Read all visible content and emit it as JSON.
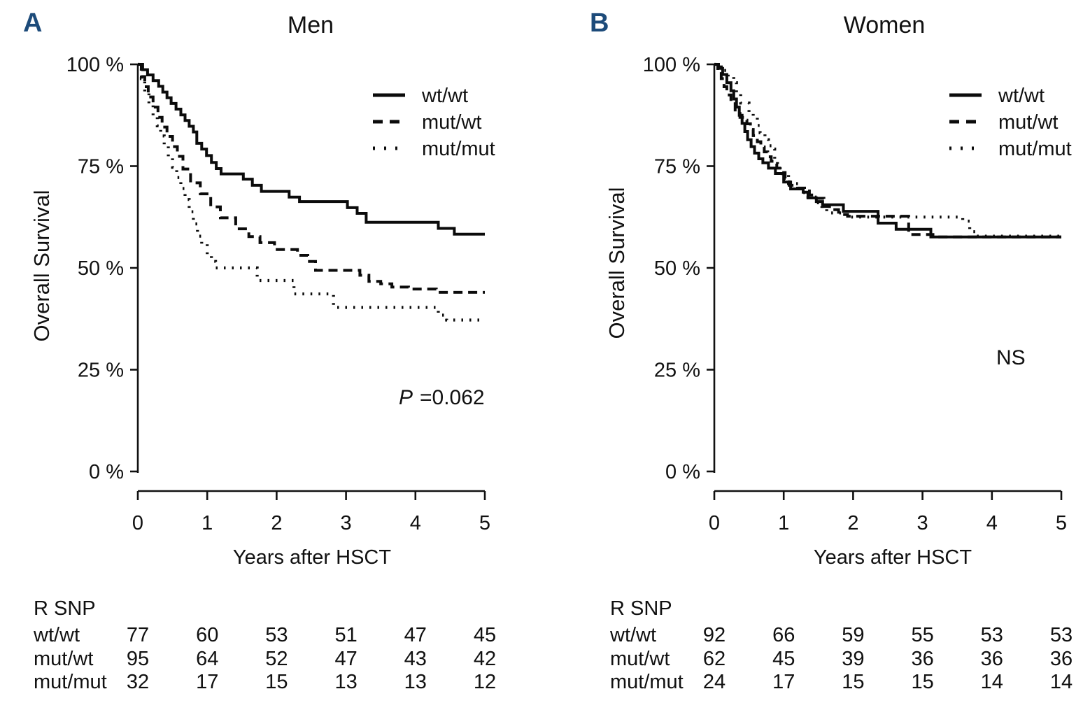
{
  "background": "#ffffff",
  "text_color": "#111111",
  "panel_label_color": "#1d4b7a",
  "chart_data": [
    {
      "type": "line",
      "subtype": "kaplan-meier-step",
      "panel_label": "A",
      "title": "Men",
      "xlabel": "Years after HSCT",
      "ylabel": "Overall Survival",
      "annotation": {
        "italic": "P",
        "text": "=0.062"
      },
      "xlim": [
        0,
        5
      ],
      "ylim": [
        0,
        100
      ],
      "grid": false,
      "legend_position": "upper right",
      "x_ticks": [
        "0",
        "1",
        "2",
        "3",
        "4",
        "5"
      ],
      "y_ticks": [
        {
          "label": "100 %",
          "value": 100
        },
        {
          "label": "75 %",
          "value": 75
        },
        {
          "label": "50 %",
          "value": 50
        },
        {
          "label": "25 %",
          "value": 25
        },
        {
          "label": "0 %",
          "value": 0
        }
      ],
      "legend": [
        {
          "label": "wt/wt",
          "style": "solid"
        },
        {
          "label": "mut/wt",
          "style": "dashed"
        },
        {
          "label": "mut/mut",
          "style": "dotted"
        }
      ],
      "series": [
        {
          "name": "wt/wt",
          "style": "solid",
          "points": [
            [
              0,
              100
            ],
            [
              0.07,
              98.7
            ],
            [
              0.14,
              97.4
            ],
            [
              0.22,
              96
            ],
            [
              0.3,
              94.6
            ],
            [
              0.36,
              93.2
            ],
            [
              0.42,
              91.8
            ],
            [
              0.48,
              90.4
            ],
            [
              0.55,
              89
            ],
            [
              0.62,
              87.6
            ],
            [
              0.68,
              86.2
            ],
            [
              0.74,
              84.8
            ],
            [
              0.8,
              83.4
            ],
            [
              0.85,
              80.6
            ],
            [
              0.92,
              79.2
            ],
            [
              0.99,
              77.6
            ],
            [
              1.06,
              75.9
            ],
            [
              1.13,
              74.4
            ],
            [
              1.2,
              73.1
            ],
            [
              1.52,
              71.8
            ],
            [
              1.65,
              70.3
            ],
            [
              1.78,
              68.8
            ],
            [
              2.18,
              67.4
            ],
            [
              2.33,
              66.3
            ],
            [
              3.02,
              64.8
            ],
            [
              3.16,
              63.4
            ],
            [
              3.29,
              61.2
            ],
            [
              4.33,
              59.7
            ],
            [
              4.56,
              58.3
            ],
            [
              5,
              58.3
            ]
          ]
        },
        {
          "name": "mut/wt",
          "style": "dashed",
          "points": [
            [
              0,
              100
            ],
            [
              0.05,
              97
            ],
            [
              0.1,
              94.5
            ],
            [
              0.15,
              92
            ],
            [
              0.22,
              89.5
            ],
            [
              0.29,
              87
            ],
            [
              0.35,
              84.6
            ],
            [
              0.42,
              82.3
            ],
            [
              0.5,
              79.8
            ],
            [
              0.57,
              77.4
            ],
            [
              0.65,
              74.3
            ],
            [
              0.76,
              70.9
            ],
            [
              0.9,
              68.2
            ],
            [
              1.05,
              65
            ],
            [
              1.19,
              62.3
            ],
            [
              1.41,
              59.6
            ],
            [
              1.6,
              57.7
            ],
            [
              1.76,
              56.2
            ],
            [
              1.97,
              54.5
            ],
            [
              2.3,
              53.1
            ],
            [
              2.45,
              51.6
            ],
            [
              2.56,
              49.4
            ],
            [
              3.2,
              48.2
            ],
            [
              3.33,
              46.7
            ],
            [
              3.5,
              46.1
            ],
            [
              3.66,
              45.3
            ],
            [
              3.9,
              44.8
            ],
            [
              4.3,
              44
            ],
            [
              5,
              44
            ]
          ]
        },
        {
          "name": "mut/mut",
          "style": "dotted",
          "points": [
            [
              0,
              100
            ],
            [
              0.05,
              96.5
            ],
            [
              0.1,
              93.3
            ],
            [
              0.16,
              90.2
            ],
            [
              0.22,
              87.4
            ],
            [
              0.28,
              84.9
            ],
            [
              0.33,
              82.4
            ],
            [
              0.38,
              79.9
            ],
            [
              0.44,
              77.2
            ],
            [
              0.5,
              74.7
            ],
            [
              0.56,
              72.2
            ],
            [
              0.62,
              69.5
            ],
            [
              0.68,
              66.8
            ],
            [
              0.74,
              63.8
            ],
            [
              0.8,
              60.8
            ],
            [
              0.86,
              57.8
            ],
            [
              0.92,
              55.9
            ],
            [
              1,
              53.2
            ],
            [
              1.06,
              51.6
            ],
            [
              1.12,
              50
            ],
            [
              1.72,
              46.9
            ],
            [
              2.25,
              43.6
            ],
            [
              2.82,
              40.3
            ],
            [
              4.33,
              38.4
            ],
            [
              4.45,
              37.2
            ],
            [
              4.95,
              37.2
            ]
          ]
        }
      ],
      "risk_table": {
        "header": "R SNP",
        "rows": [
          {
            "label": "wt/wt",
            "values": [
              "77",
              "60",
              "53",
              "51",
              "47",
              "45"
            ]
          },
          {
            "label": "mut/wt",
            "values": [
              "95",
              "64",
              "52",
              "47",
              "43",
              "42"
            ]
          },
          {
            "label": "mut/mut",
            "values": [
              "32",
              "17",
              "15",
              "13",
              "13",
              "12"
            ]
          }
        ]
      }
    },
    {
      "type": "line",
      "subtype": "kaplan-meier-step",
      "panel_label": "B",
      "title": "Women",
      "xlabel": "Years after HSCT",
      "ylabel": "Overall Survival",
      "annotation": {
        "italic": "",
        "text": "NS"
      },
      "xlim": [
        0,
        5
      ],
      "ylim": [
        0,
        100
      ],
      "grid": false,
      "legend_position": "upper right",
      "x_ticks": [
        "0",
        "1",
        "2",
        "3",
        "4",
        "5"
      ],
      "y_ticks": [
        {
          "label": "100 %",
          "value": 100
        },
        {
          "label": "75 %",
          "value": 75
        },
        {
          "label": "50 %",
          "value": 50
        },
        {
          "label": "25 %",
          "value": 25
        },
        {
          "label": "0 %",
          "value": 0
        }
      ],
      "legend": [
        {
          "label": "wt/wt",
          "style": "solid"
        },
        {
          "label": "mut/wt",
          "style": "dashed"
        },
        {
          "label": "mut/mut",
          "style": "dotted"
        }
      ],
      "series": [
        {
          "name": "wt/wt",
          "style": "solid",
          "points": [
            [
              0,
              100
            ],
            [
              0.06,
              99
            ],
            [
              0.12,
              97.5
            ],
            [
              0.18,
              95.5
            ],
            [
              0.24,
              93.5
            ],
            [
              0.28,
              91.5
            ],
            [
              0.32,
              89.5
            ],
            [
              0.36,
              87.5
            ],
            [
              0.4,
              85.5
            ],
            [
              0.44,
              83.5
            ],
            [
              0.48,
              81.5
            ],
            [
              0.53,
              79.8
            ],
            [
              0.58,
              78.2
            ],
            [
              0.64,
              76.8
            ],
            [
              0.7,
              75.8
            ],
            [
              0.78,
              74.5
            ],
            [
              0.88,
              73.2
            ],
            [
              1,
              71.1
            ],
            [
              1.1,
              69.4
            ],
            [
              1.28,
              68.6
            ],
            [
              1.35,
              67.2
            ],
            [
              1.47,
              66.3
            ],
            [
              1.56,
              65.5
            ],
            [
              1.86,
              63.9
            ],
            [
              2.36,
              61
            ],
            [
              2.62,
              59.5
            ],
            [
              3.12,
              57.6
            ],
            [
              5,
              57.6
            ]
          ]
        },
        {
          "name": "mut/wt",
          "style": "dashed",
          "points": [
            [
              0,
              100
            ],
            [
              0.05,
              98.5
            ],
            [
              0.1,
              96.5
            ],
            [
              0.14,
              94.5
            ],
            [
              0.18,
              92.5
            ],
            [
              0.24,
              91
            ],
            [
              0.3,
              88.8
            ],
            [
              0.37,
              87
            ],
            [
              0.43,
              86.3
            ],
            [
              0.47,
              85.4
            ],
            [
              0.52,
              84
            ],
            [
              0.56,
              82.5
            ],
            [
              0.62,
              81
            ],
            [
              0.67,
              79.7
            ],
            [
              0.72,
              78.5
            ],
            [
              0.77,
              77.3
            ],
            [
              0.82,
              76.2
            ],
            [
              0.86,
              75.6
            ],
            [
              0.9,
              74.5
            ],
            [
              0.97,
              73.4
            ],
            [
              1.02,
              72
            ],
            [
              1.08,
              70.3
            ],
            [
              1.2,
              69.6
            ],
            [
              1.3,
              68.9
            ],
            [
              1.37,
              67.9
            ],
            [
              1.47,
              67.1
            ],
            [
              1.58,
              65.1
            ],
            [
              1.66,
              64.3
            ],
            [
              1.79,
              63.1
            ],
            [
              1.92,
              62.7
            ],
            [
              2.8,
              58.2
            ],
            [
              3.15,
              57.6
            ],
            [
              5,
              57.6
            ]
          ]
        },
        {
          "name": "mut/mut",
          "style": "dotted",
          "points": [
            [
              0,
              100
            ],
            [
              0.1,
              98.5
            ],
            [
              0.2,
              97
            ],
            [
              0.28,
              95.5
            ],
            [
              0.32,
              93
            ],
            [
              0.38,
              90.5
            ],
            [
              0.5,
              88
            ],
            [
              0.56,
              87
            ],
            [
              0.62,
              85
            ],
            [
              0.66,
              83.2
            ],
            [
              0.73,
              81.5
            ],
            [
              0.78,
              80
            ],
            [
              0.83,
              79.2
            ],
            [
              0.87,
              76.8
            ],
            [
              0.91,
              75.4
            ],
            [
              0.95,
              74
            ],
            [
              0.98,
              72.8
            ],
            [
              1.07,
              70.7
            ],
            [
              1.25,
              68.5
            ],
            [
              1.35,
              67.4
            ],
            [
              1.5,
              66
            ],
            [
              1.55,
              64.5
            ],
            [
              1.62,
              63.5
            ],
            [
              1.9,
              62.5
            ],
            [
              3.58,
              61.5
            ],
            [
              3.68,
              58.9
            ],
            [
              3.78,
              57.8
            ],
            [
              5,
              57.8
            ]
          ]
        }
      ],
      "risk_table": {
        "header": "R SNP",
        "rows": [
          {
            "label": "wt/wt",
            "values": [
              "92",
              "66",
              "59",
              "55",
              "53",
              "53"
            ]
          },
          {
            "label": "mut/wt",
            "values": [
              "62",
              "45",
              "39",
              "36",
              "36",
              "36"
            ]
          },
          {
            "label": "mut/mut",
            "values": [
              "24",
              "17",
              "15",
              "15",
              "14",
              "14"
            ]
          }
        ]
      }
    }
  ]
}
